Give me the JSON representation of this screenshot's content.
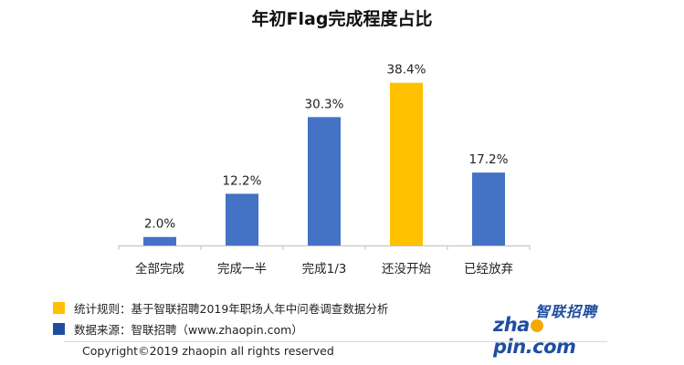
{
  "chart_data": {
    "type": "bar",
    "title": "年初Flag完成程度占比",
    "categories": [
      "全部完成",
      "完成一半",
      "完成1/3",
      "还没开始",
      "已经放弃"
    ],
    "values": [
      2.0,
      12.2,
      30.3,
      38.4,
      17.2
    ],
    "labels": [
      "2.0%",
      "12.2%",
      "30.3%",
      "38.4%",
      "17.2%"
    ],
    "highlight_index": 3,
    "colors": {
      "default": "#4472c4",
      "highlight": "#ffc000"
    },
    "ylim": [
      0,
      42
    ],
    "grid": false,
    "legend": "none"
  },
  "notes": [
    {
      "text": "统计规则：基于智联招聘2019年职场人年中问卷调查数据分析",
      "color": "#ffc000"
    },
    {
      "text": "数据来源：智联招聘（www.zhaopin.com）",
      "color": "#1f4ea0"
    }
  ],
  "logo": {
    "cn": "智联招聘",
    "en_before": "zha",
    "en_after": "pin.com"
  },
  "copyright": "Copyright©2019 zhaopin  all  rights  reserved"
}
